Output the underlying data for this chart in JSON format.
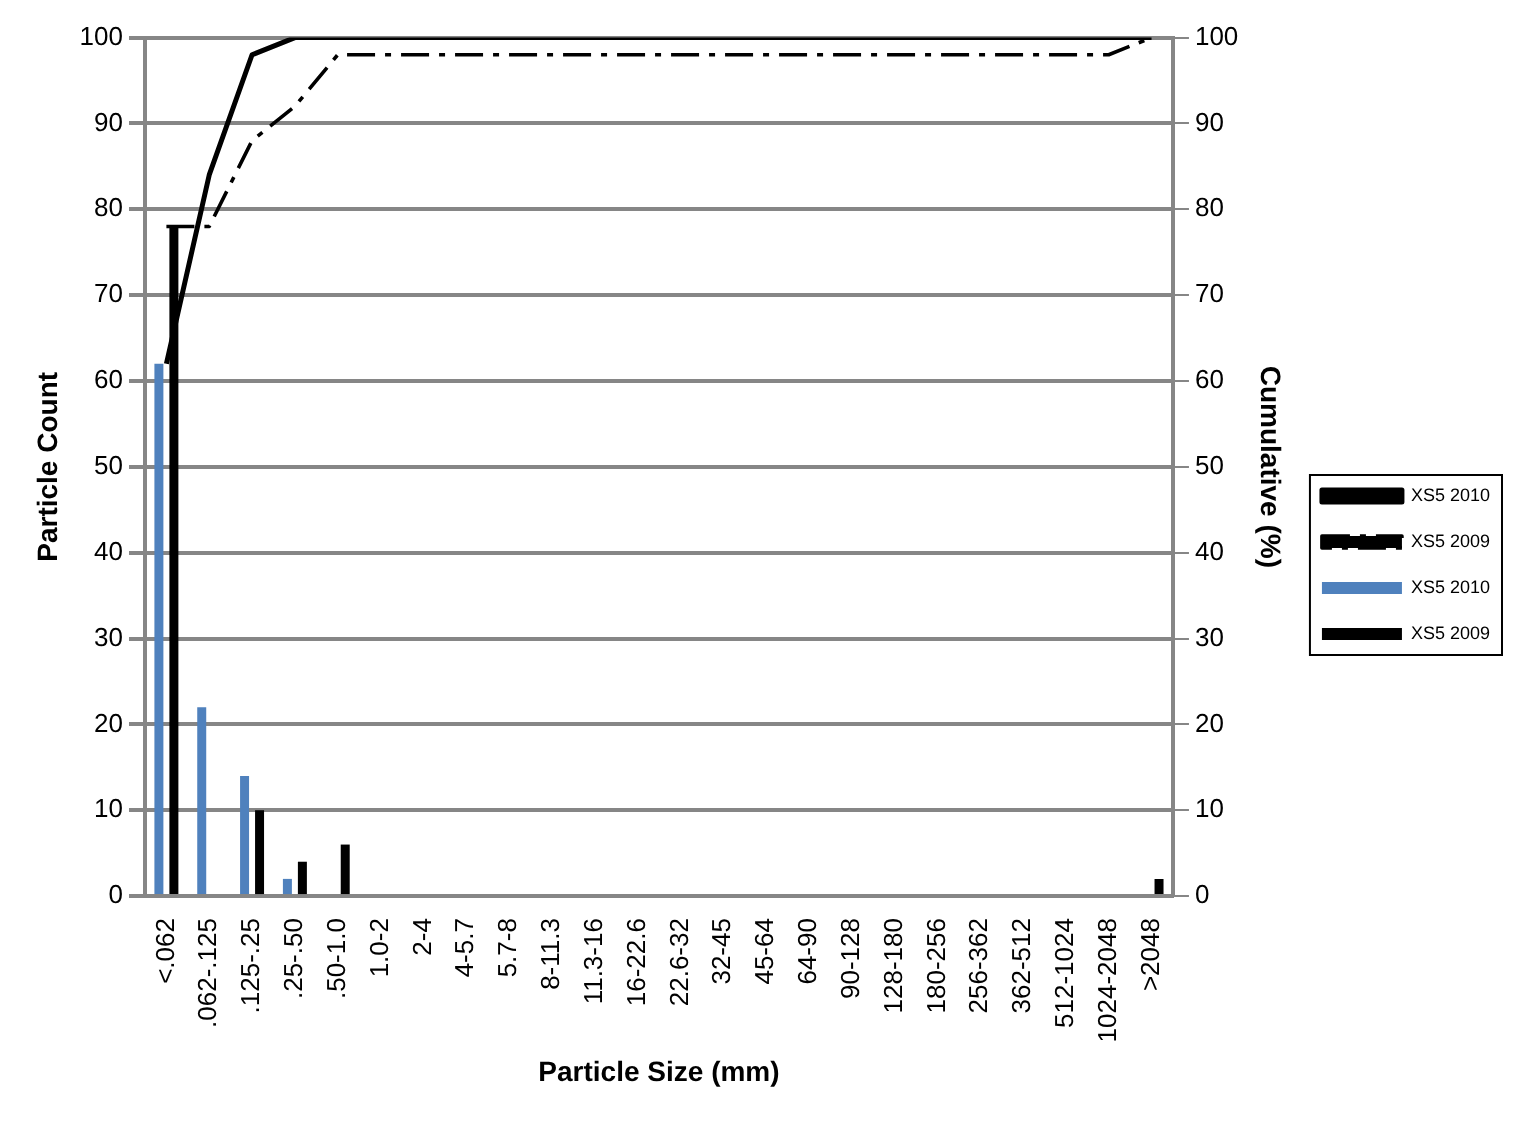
{
  "chart_data": {
    "type": "bar",
    "xlabel": "Particle Size (mm)",
    "ylabel": "Particle Count",
    "y2label": "Cumulative (%)",
    "categories": [
      "<.062",
      ".062-.125",
      ".125-.25",
      ".25-.50",
      ".50-1.0",
      "1.0-2",
      "2-4",
      "4-5.7",
      "5.7-8",
      "8-11.3",
      "11.3-16",
      "16-22.6",
      "22.6-32",
      "32-45",
      "45-64",
      "64-90",
      "90-128",
      "128-180",
      "180-256",
      "256-362",
      "362-512",
      "512-1024",
      "1024-2048",
      ">2048"
    ],
    "series": [
      {
        "name": "XS5 2010",
        "type": "bar",
        "color": "#4f81bd",
        "values": [
          62,
          22,
          14,
          2,
          0,
          0,
          0,
          0,
          0,
          0,
          0,
          0,
          0,
          0,
          0,
          0,
          0,
          0,
          0,
          0,
          0,
          0,
          0,
          0
        ]
      },
      {
        "name": "XS5 2009",
        "type": "bar",
        "color": "#000000",
        "values": [
          78,
          0,
          10,
          4,
          6,
          0,
          0,
          0,
          0,
          0,
          0,
          0,
          0,
          0,
          0,
          0,
          0,
          0,
          0,
          0,
          0,
          0,
          0,
          2
        ]
      },
      {
        "name": "XS5 2010",
        "type": "line",
        "axis": "y2",
        "color": "#000000",
        "line_style": "solid",
        "values": [
          62,
          84,
          98,
          100,
          100,
          100,
          100,
          100,
          100,
          100,
          100,
          100,
          100,
          100,
          100,
          100,
          100,
          100,
          100,
          100,
          100,
          100,
          100,
          100
        ]
      },
      {
        "name": "XS5 2009",
        "type": "line",
        "axis": "y2",
        "color": "#000000",
        "line_style": "dashed",
        "values": [
          78,
          78,
          88,
          92,
          98,
          98,
          98,
          98,
          98,
          98,
          98,
          98,
          98,
          98,
          98,
          98,
          98,
          98,
          98,
          98,
          98,
          98,
          98,
          100
        ]
      }
    ],
    "ylim": [
      0,
      100
    ],
    "yticks": [
      0,
      10,
      20,
      30,
      40,
      50,
      60,
      70,
      80,
      90,
      100
    ],
    "y2lim": [
      0,
      100
    ],
    "y2ticks": [
      0,
      10,
      20,
      30,
      40,
      50,
      60,
      70,
      80,
      90,
      100
    ],
    "grid": "y",
    "legend": "right",
    "marker": "none"
  }
}
